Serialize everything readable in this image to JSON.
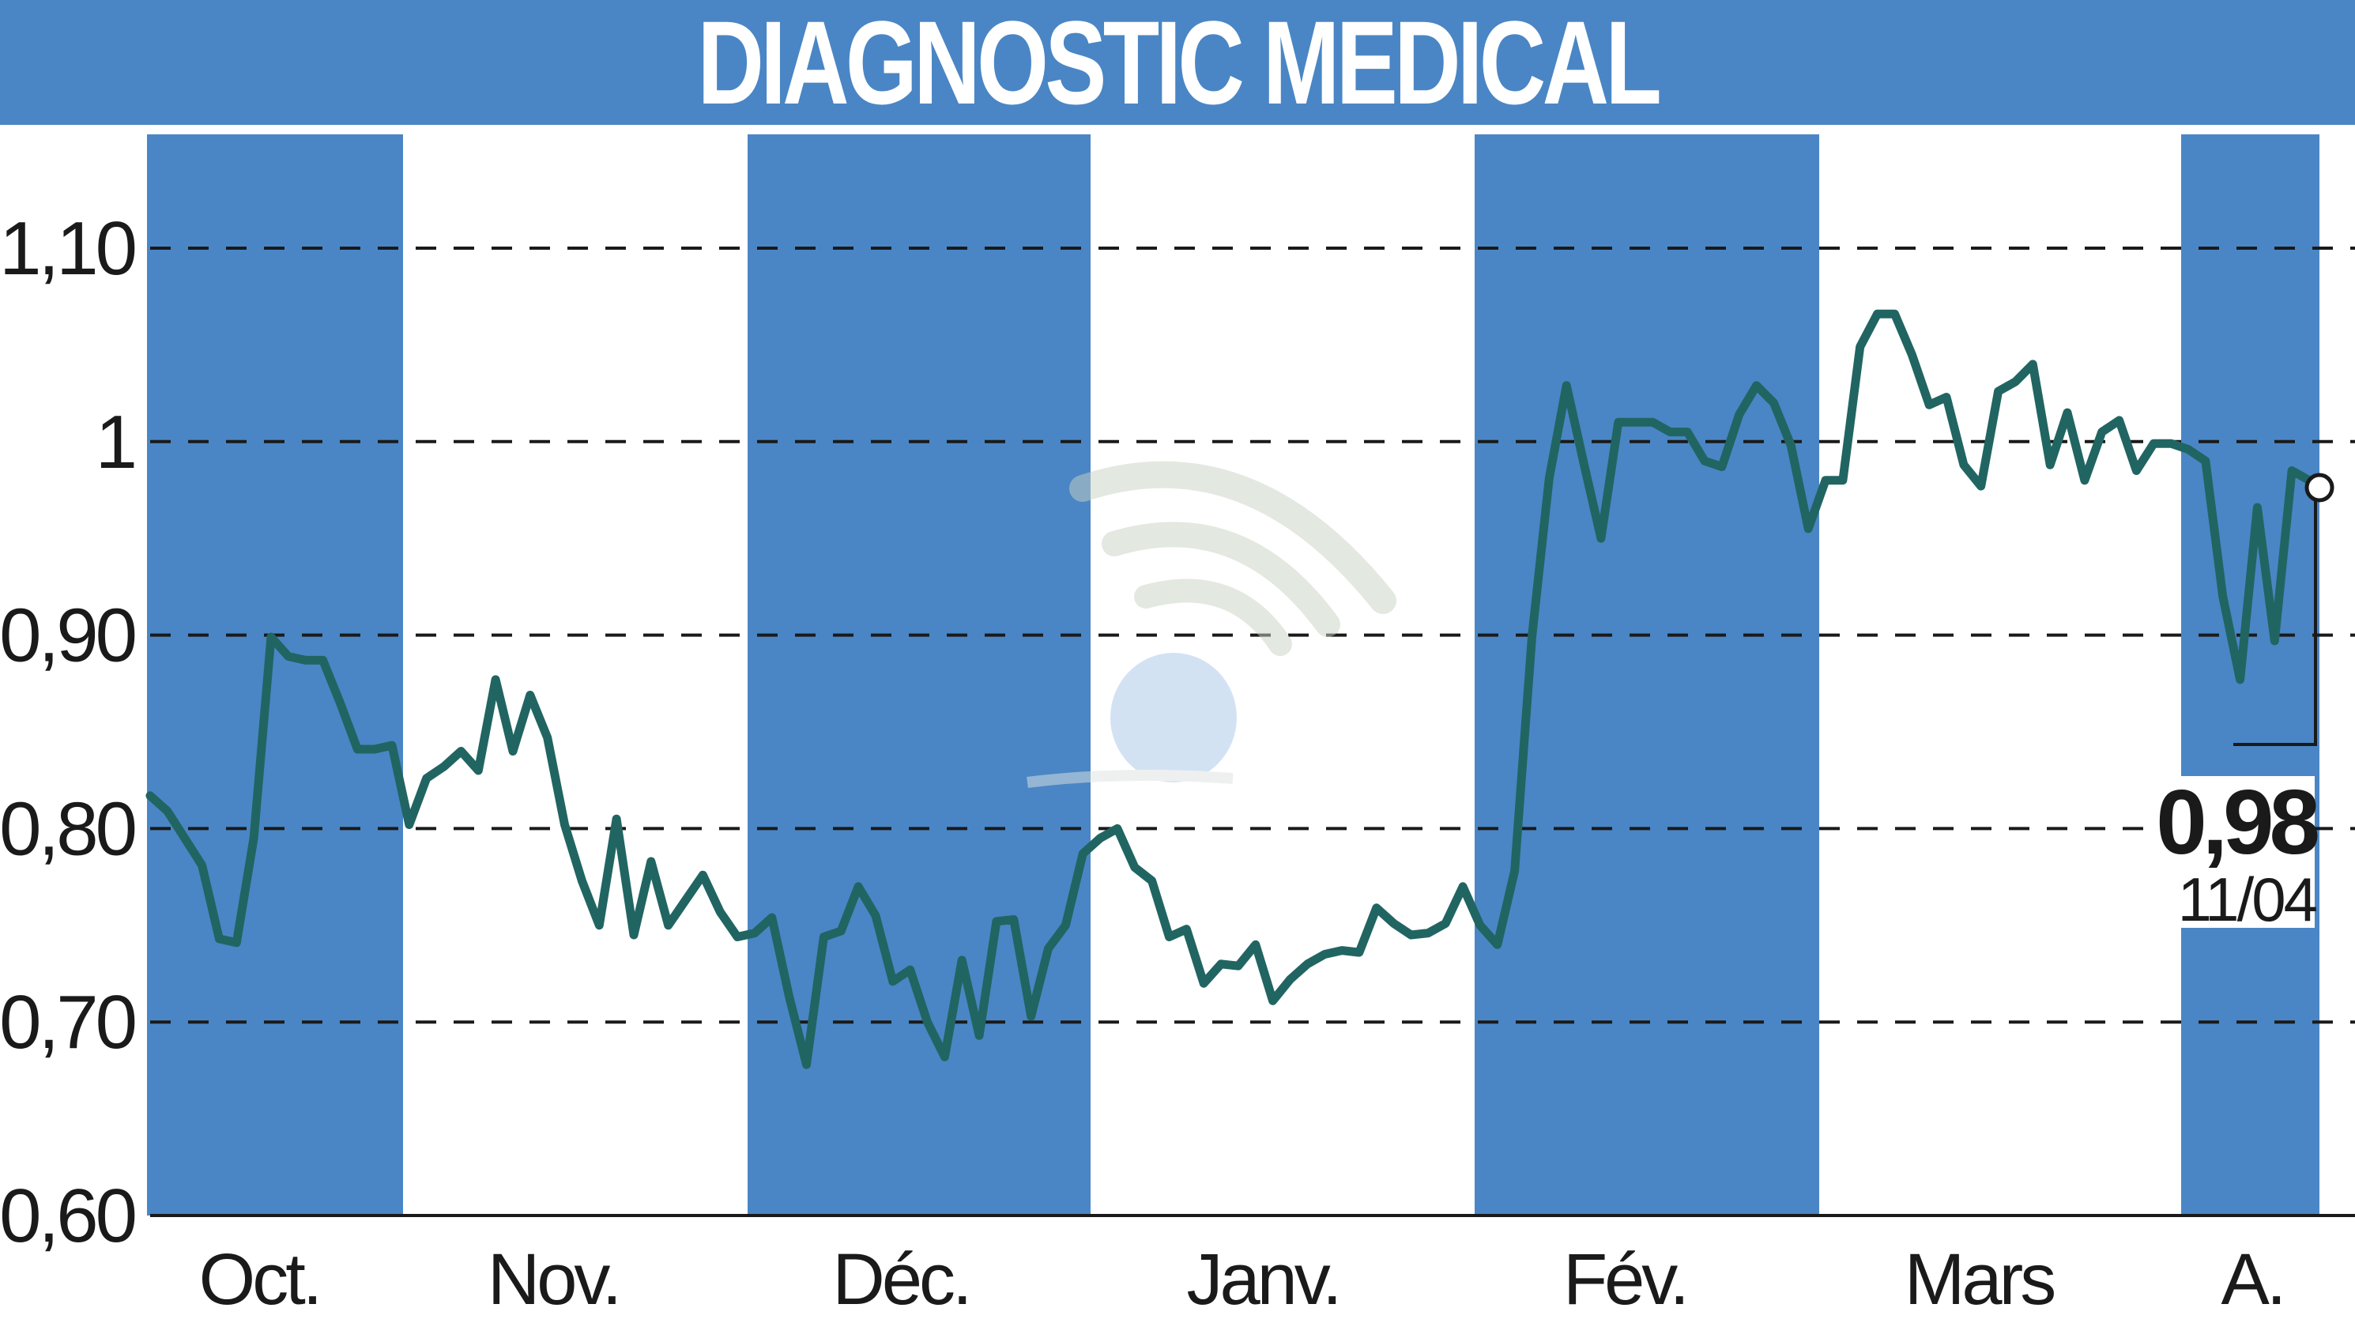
{
  "header": {
    "title": "DIAGNOSTIC MEDICAL"
  },
  "colors": {
    "band": "#4a86c5",
    "line": "#216562",
    "grid": "#1a1a1a",
    "title_bar": "#4a86c5"
  },
  "chart_data": {
    "type": "line",
    "title": "DIAGNOSTIC MEDICAL",
    "ylim": [
      0.6,
      1.1
    ],
    "y_ticks": [
      {
        "value": 0.6,
        "label": "0,60"
      },
      {
        "value": 0.7,
        "label": "0,70"
      },
      {
        "value": 0.8,
        "label": "0,80"
      },
      {
        "value": 0.9,
        "label": "0,90"
      },
      {
        "value": 1.0,
        "label": "1"
      },
      {
        "value": 1.1,
        "label": "1,10"
      }
    ],
    "grid": "dashed-horizontal",
    "x_tick_labels": [
      "Oct.",
      "Nov.",
      "Déc.",
      "Janv.",
      "Fév.",
      "Mars",
      "A."
    ],
    "alternating_month_bands": [
      "Oct.",
      "Déc.",
      "Fév.",
      "A."
    ],
    "series": [
      {
        "values": [
          0.817,
          0.809,
          0.795,
          0.781,
          0.743,
          0.741,
          0.795,
          0.899,
          0.889,
          0.887,
          0.887,
          0.865,
          0.841,
          0.841,
          0.843,
          0.802,
          0.826,
          0.832,
          0.84,
          0.83,
          0.877,
          0.84,
          0.869,
          0.847,
          0.802,
          0.773,
          0.75,
          0.805,
          0.745,
          0.783,
          0.75,
          0.763,
          0.776,
          0.757,
          0.744,
          0.746,
          0.754,
          0.713,
          0.678,
          0.744,
          0.747,
          0.77,
          0.755,
          0.721,
          0.727,
          0.7,
          0.682,
          0.732,
          0.693,
          0.752,
          0.753,
          0.703,
          0.738,
          0.75,
          0.787,
          0.795,
          0.8,
          0.78,
          0.773,
          0.744,
          0.748,
          0.72,
          0.73,
          0.729,
          0.74,
          0.711,
          0.722,
          0.73,
          0.735,
          0.737,
          0.736,
          0.759,
          0.751,
          0.745,
          0.746,
          0.751,
          0.77,
          0.75,
          0.74,
          0.778,
          0.899,
          0.981,
          1.029,
          0.989,
          0.95,
          1.01,
          1.01,
          1.01,
          1.005,
          1.005,
          0.99,
          0.987,
          1.014,
          1.029,
          1.02,
          0.998,
          0.955,
          0.98,
          0.98,
          1.049,
          1.066,
          1.066,
          1.045,
          1.019,
          1.023,
          0.988,
          0.977,
          1.026,
          1.031,
          1.04,
          0.988,
          1.015,
          0.98,
          1.005,
          1.011,
          0.985,
          0.999,
          0.999,
          0.996,
          0.99,
          0.92,
          0.877,
          0.966,
          0.897,
          0.985,
          0.98
        ]
      }
    ],
    "last": {
      "value": "0,98",
      "date": "11/04"
    }
  }
}
